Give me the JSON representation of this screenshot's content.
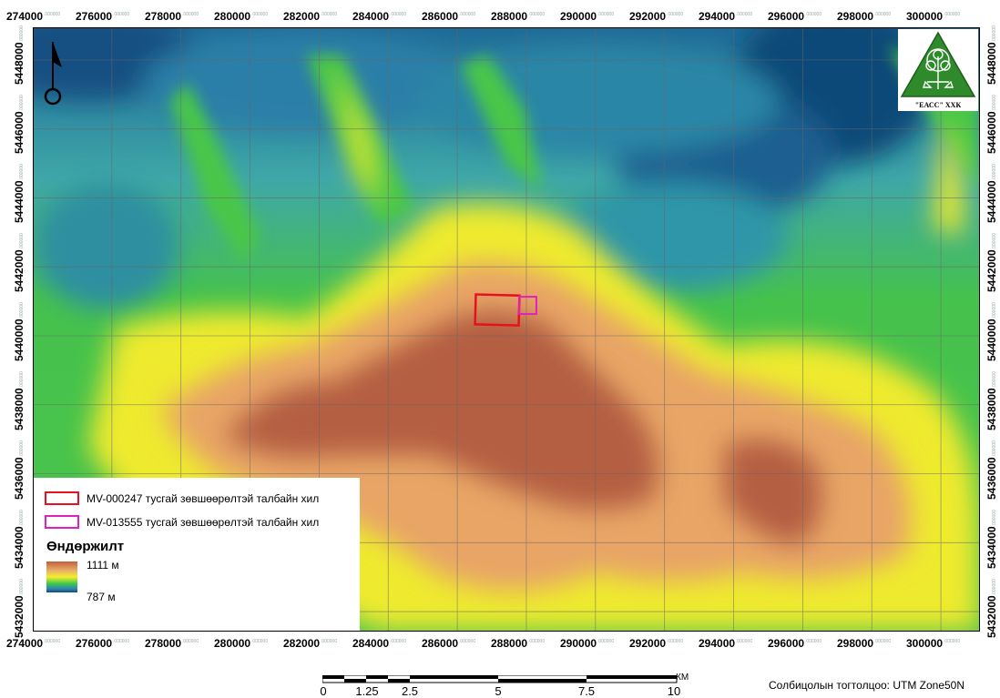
{
  "map": {
    "x_ticks": [
      "274000",
      "276000",
      "278000",
      "280000",
      "282000",
      "284000",
      "286000",
      "288000",
      "290000",
      "292000",
      "294000",
      "296000",
      "298000",
      "300000"
    ],
    "y_ticks": [
      "5448000",
      "5446000",
      "5444000",
      "5442000",
      "5440000",
      "5438000",
      "5436000",
      "5434000",
      "5432000"
    ],
    "tick_suffix": ".000000"
  },
  "legend": {
    "items": [
      {
        "label": "MV-000247 тусгай зөвшөөрөлтэй талбайн хил",
        "color": "#e8101e"
      },
      {
        "label": "MV-013555 тусгай зөвшөөрөлтэй талбайн хил",
        "color": "#e020c0"
      }
    ],
    "elevation_title": "Өндөржилт",
    "elevation_max": "1111 м",
    "elevation_min": "787 м"
  },
  "logo": {
    "text": "\"ЕАСС\" ХХК",
    "color": "#2e8a2a",
    "icon": "tree-scales-icon"
  },
  "north_arrow": {
    "icon": "north-arrow-icon"
  },
  "scale_bar": {
    "labels": [
      "0",
      "1.25",
      "2.5",
      "5",
      "7.5",
      "10"
    ],
    "unit": "КМ"
  },
  "coordinate_system": "Солбицолын тогтолцоо: UTM Zone50N",
  "colors": {
    "high": "#b0563a",
    "mid_high": "#e7a86a",
    "mid": "#f2ee2c",
    "mid_low": "#3cc84a",
    "low": "#2e86b0",
    "lowest": "#114878"
  }
}
